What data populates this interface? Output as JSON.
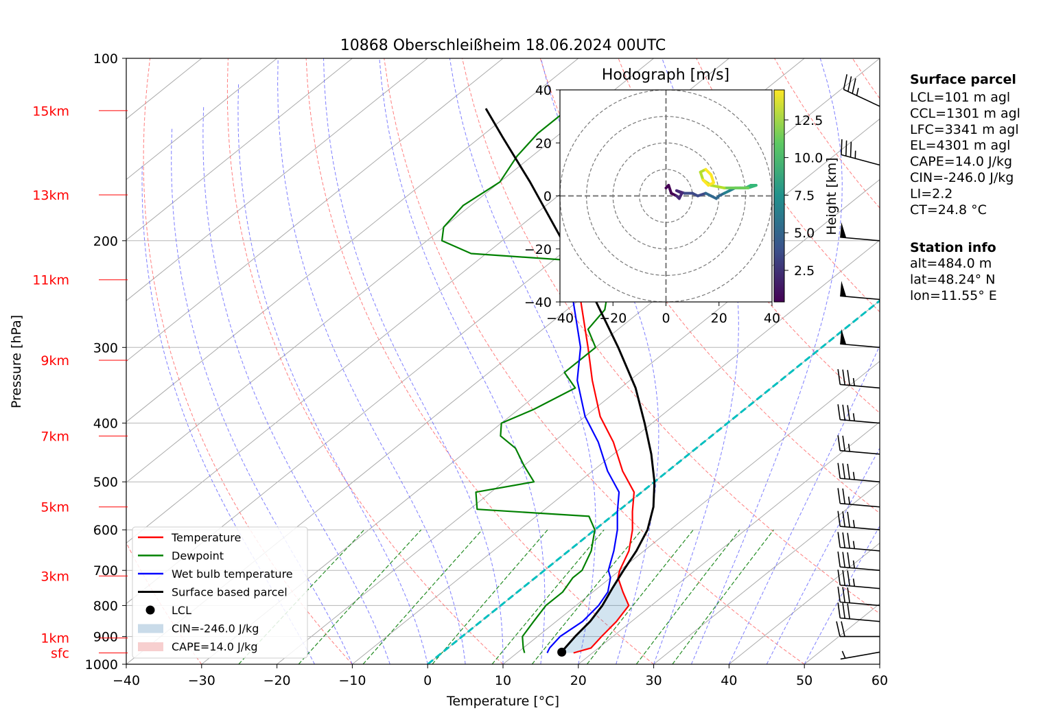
{
  "chart_data": {
    "type": "skew-t",
    "title": "10868 Oberschleißheim 18.06.2024 00UTC",
    "xlabel": "Temperature [°C]",
    "ylabel": "Pressure [hPa]",
    "xlim": [
      -40,
      60
    ],
    "ylim_hpa": [
      1000,
      100
    ],
    "x_ticks": [
      "−40",
      "−30",
      "−20",
      "−10",
      "0",
      "10",
      "20",
      "30",
      "40",
      "50",
      "60"
    ],
    "p_ticks": [
      "1000",
      "900",
      "800",
      "700",
      "600",
      "500",
      "400",
      "300",
      "200",
      "100"
    ],
    "height_labels": [
      {
        "text": "sfc",
        "p": 958
      },
      {
        "text": "1km",
        "p": 905
      },
      {
        "text": "3km",
        "p": 715
      },
      {
        "text": "5km",
        "p": 550
      },
      {
        "text": "7km",
        "p": 420
      },
      {
        "text": "9km",
        "p": 315
      },
      {
        "text": "11km",
        "p": 232
      },
      {
        "text": "13km",
        "p": 168
      },
      {
        "text": "15km",
        "p": 122
      }
    ],
    "series": [
      {
        "name": "Temperature",
        "color": "#ff0000",
        "points": [
          [
            958,
            17.5
          ],
          [
            940,
            19
          ],
          [
            900,
            18.5
          ],
          [
            850,
            18
          ],
          [
            800,
            17
          ],
          [
            760,
            14
          ],
          [
            720,
            11
          ],
          [
            700,
            10
          ],
          [
            650,
            8
          ],
          [
            600,
            5
          ],
          [
            560,
            2
          ],
          [
            520,
            -1
          ],
          [
            480,
            -6
          ],
          [
            430,
            -12
          ],
          [
            390,
            -18
          ],
          [
            340,
            -25
          ],
          [
            300,
            -31
          ],
          [
            260,
            -38
          ],
          [
            230,
            -44
          ],
          [
            205,
            -50
          ],
          [
            195,
            -53
          ],
          [
            180,
            -51
          ],
          [
            165,
            -49
          ],
          [
            150,
            -51
          ],
          [
            135,
            -53
          ],
          [
            121,
            -56
          ]
        ]
      },
      {
        "name": "Dewpoint",
        "color": "#008000",
        "points": [
          [
            958,
            11
          ],
          [
            940,
            10
          ],
          [
            900,
            8
          ],
          [
            850,
            7
          ],
          [
            800,
            6
          ],
          [
            760,
            6
          ],
          [
            720,
            5
          ],
          [
            700,
            5
          ],
          [
            650,
            3
          ],
          [
            600,
            0
          ],
          [
            570,
            -3
          ],
          [
            555,
            -19
          ],
          [
            520,
            -22
          ],
          [
            500,
            -16
          ],
          [
            470,
            -20
          ],
          [
            440,
            -24
          ],
          [
            420,
            -28
          ],
          [
            400,
            -30
          ],
          [
            380,
            -28
          ],
          [
            350,
            -26
          ],
          [
            330,
            -30
          ],
          [
            315,
            -30
          ],
          [
            300,
            -30
          ],
          [
            280,
            -34
          ],
          [
            260,
            -35
          ],
          [
            240,
            -38
          ],
          [
            230,
            -42
          ],
          [
            215,
            -49
          ],
          [
            210,
            -62
          ],
          [
            200,
            -68
          ],
          [
            190,
            -70
          ],
          [
            175,
            -71
          ],
          [
            160,
            -70
          ],
          [
            145,
            -72
          ],
          [
            133,
            -73
          ],
          [
            121,
            -73
          ]
        ]
      },
      {
        "name": "Wet bulb temperature",
        "color": "#0000ff",
        "points": [
          [
            958,
            14
          ],
          [
            940,
            13.5
          ],
          [
            900,
            13
          ],
          [
            850,
            13.5
          ],
          [
            800,
            13
          ],
          [
            760,
            12
          ],
          [
            720,
            10
          ],
          [
            700,
            8.5
          ],
          [
            650,
            6
          ],
          [
            600,
            3
          ],
          [
            560,
            0
          ],
          [
            520,
            -3
          ],
          [
            480,
            -8
          ],
          [
            430,
            -14
          ],
          [
            390,
            -20
          ],
          [
            340,
            -27
          ],
          [
            300,
            -32
          ],
          [
            260,
            -39
          ],
          [
            230,
            -45
          ],
          [
            205,
            -50
          ],
          [
            195,
            -53
          ],
          [
            180,
            -51
          ],
          [
            165,
            -49
          ],
          [
            150,
            -51
          ],
          [
            135,
            -53
          ],
          [
            121,
            -56
          ]
        ]
      },
      {
        "name": "Surface based parcel",
        "color": "#000000",
        "points": [
          [
            958,
            15.8
          ],
          [
            900,
            15
          ],
          [
            850,
            14.5
          ],
          [
            800,
            13.5
          ],
          [
            750,
            12
          ],
          [
            700,
            10.5
          ],
          [
            650,
            9
          ],
          [
            600,
            7
          ],
          [
            550,
            4
          ],
          [
            500,
            0
          ],
          [
            450,
            -5
          ],
          [
            400,
            -11
          ],
          [
            350,
            -18
          ],
          [
            300,
            -27
          ],
          [
            250,
            -38
          ],
          [
            200,
            -52
          ],
          [
            160,
            -66
          ],
          [
            135,
            -77
          ],
          [
            121,
            -84
          ]
        ]
      }
    ],
    "lcl": {
      "name": "LCL",
      "p": 955,
      "t": 15.8
    },
    "cin_label": "CIN=-246.0 J/kg",
    "cape_label": "CAPE=14.0 J/kg",
    "cin_region": {
      "parcel_side": [
        [
          958,
          15.8
        ],
        [
          900,
          15
        ],
        [
          850,
          14.5
        ],
        [
          800,
          13.5
        ],
        [
          750,
          12
        ],
        [
          700,
          10.5
        ]
      ],
      "env_side": [
        [
          700,
          10
        ],
        [
          720,
          11
        ],
        [
          760,
          14
        ],
        [
          800,
          17
        ],
        [
          850,
          18
        ],
        [
          900,
          18.5
        ],
        [
          940,
          19
        ],
        [
          958,
          17.5
        ]
      ]
    },
    "hodograph": {
      "title": "Hodograph [m/s]",
      "xlim": [
        -40,
        40
      ],
      "ylim": [
        -40,
        40
      ],
      "x_ticks": [
        "−40",
        "−20",
        "0",
        "20",
        "40"
      ],
      "y_ticks": [
        "40",
        "20",
        "0",
        "−20",
        "−40"
      ],
      "rings": [
        10,
        20,
        30,
        40
      ],
      "colorbar_label": "Height [km]",
      "colorbar_ticks": [
        "2.5",
        "5.0",
        "7.5",
        "10.0",
        "12.5"
      ],
      "height_range_km": [
        0.4,
        14.5
      ],
      "points": [
        [
          0,
          3,
          0.5
        ],
        [
          1,
          4,
          0.8
        ],
        [
          2,
          1,
          1.2
        ],
        [
          4,
          0,
          1.6
        ],
        [
          5,
          -1,
          2.0
        ],
        [
          6,
          1,
          2.4
        ],
        [
          4,
          2,
          2.8
        ],
        [
          7,
          1,
          3.2
        ],
        [
          10,
          1,
          3.6
        ],
        [
          12,
          0,
          4.0
        ],
        [
          15,
          1,
          4.4
        ],
        [
          17,
          0,
          4.8
        ],
        [
          19,
          -1,
          5.2
        ],
        [
          20,
          0,
          5.6
        ],
        [
          22,
          1,
          6.0
        ],
        [
          24,
          2,
          6.6
        ],
        [
          26,
          3,
          7.2
        ],
        [
          28,
          3,
          7.8
        ],
        [
          30,
          3,
          8.4
        ],
        [
          32,
          4,
          9.0
        ],
        [
          34,
          4,
          9.6
        ],
        [
          31,
          3,
          10.2
        ],
        [
          28,
          3,
          10.8
        ],
        [
          22,
          3,
          11.4
        ],
        [
          17,
          4,
          11.8
        ],
        [
          14,
          6,
          12.2
        ],
        [
          13,
          9,
          12.6
        ],
        [
          15,
          10,
          13.0
        ],
        [
          17,
          8,
          13.4
        ],
        [
          18,
          5,
          13.8
        ],
        [
          16,
          4,
          14.2
        ],
        [
          14,
          6,
          14.5
        ]
      ]
    },
    "surface_parcel": {
      "heading": "Surface parcel",
      "lines": [
        "LCL=101 m agl",
        "CCL=1301 m agl",
        "LFC=3341 m agl",
        "EL=4301 m agl",
        "CAPE=14.0 J/kg",
        "CIN=-246.0 J/kg",
        "LI=2.2",
        "CT=24.8 °C"
      ]
    },
    "station_info": {
      "heading": "Station info",
      "lines": [
        "alt=484.0 m",
        "lat=48.24° N",
        "lon=11.55° E"
      ]
    },
    "legend": {
      "placement": "lower-left",
      "entries": [
        {
          "label": "Temperature",
          "kind": "line",
          "color": "#ff0000"
        },
        {
          "label": "Dewpoint",
          "kind": "line",
          "color": "#008000"
        },
        {
          "label": "Wet bulb temperature",
          "kind": "line",
          "color": "#0000ff"
        },
        {
          "label": "Surface based parcel",
          "kind": "line",
          "color": "#000000"
        },
        {
          "label": "LCL",
          "kind": "dot",
          "color": "#000000"
        },
        {
          "label": "CIN=-246.0 J/kg",
          "kind": "patch",
          "color": "#c9dbe9"
        },
        {
          "label": "CAPE=14.0 J/kg",
          "kind": "patch",
          "color": "#f7cfcf"
        }
      ]
    },
    "wind_barbs": [
      {
        "p": 955,
        "dir": 260,
        "kt": 5
      },
      {
        "p": 900,
        "dir": 270,
        "kt": 20
      },
      {
        "p": 850,
        "dir": 275,
        "kt": 30
      },
      {
        "p": 800,
        "dir": 275,
        "kt": 30
      },
      {
        "p": 750,
        "dir": 275,
        "kt": 35
      },
      {
        "p": 700,
        "dir": 275,
        "kt": 35
      },
      {
        "p": 650,
        "dir": 275,
        "kt": 35
      },
      {
        "p": 600,
        "dir": 275,
        "kt": 35
      },
      {
        "p": 550,
        "dir": 275,
        "kt": 25
      },
      {
        "p": 500,
        "dir": 275,
        "kt": 35
      },
      {
        "p": 450,
        "dir": 275,
        "kt": 25
      },
      {
        "p": 400,
        "dir": 275,
        "kt": 35
      },
      {
        "p": 350,
        "dir": 275,
        "kt": 35
      },
      {
        "p": 300,
        "dir": 275,
        "kt": 50
      },
      {
        "p": 250,
        "dir": 275,
        "kt": 50
      },
      {
        "p": 200,
        "dir": 275,
        "kt": 50
      },
      {
        "p": 150,
        "dir": 285,
        "kt": 35
      },
      {
        "p": 120,
        "dir": 295,
        "kt": 35
      }
    ],
    "background_lines": {
      "isotherm_color": "#aaaaaa",
      "dry_adiabat_color": "#ff6666",
      "moist_adiabat_color": "#6666ff",
      "mixing_ratio_color": "#228b22",
      "zero_isotherm_color": "#00bfbf"
    }
  }
}
